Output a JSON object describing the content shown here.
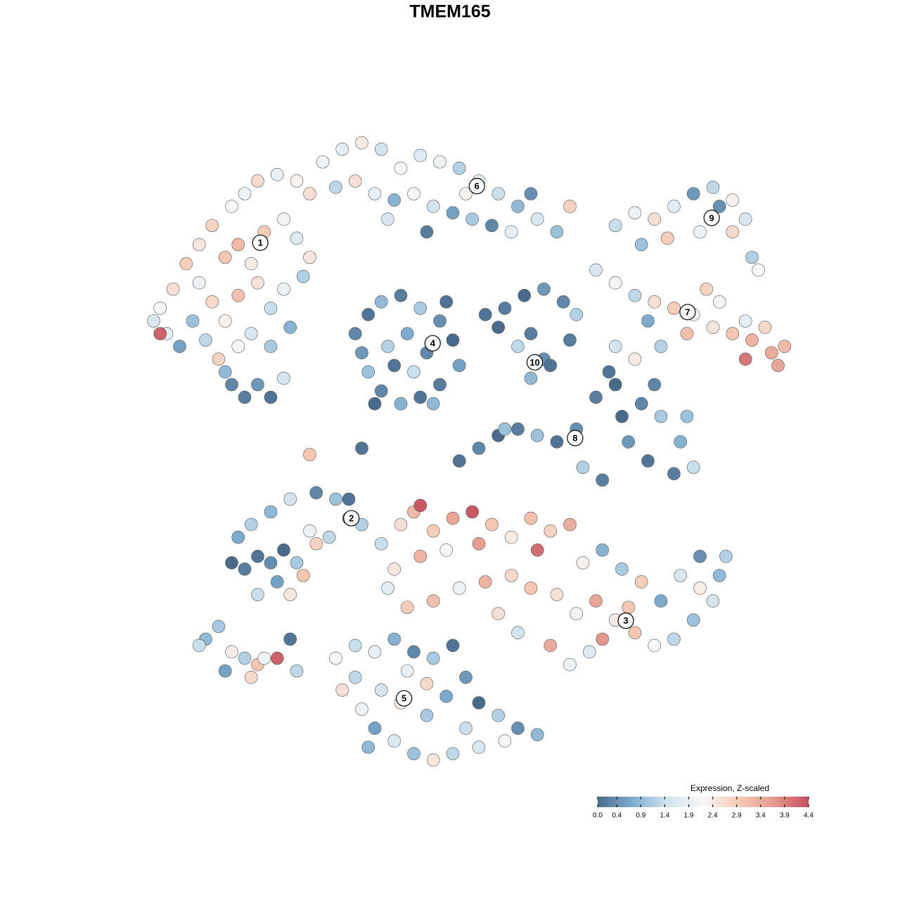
{
  "chart_data": {
    "type": "scatter",
    "title": "TMEM165",
    "xlim": [
      0,
      100
    ],
    "ylim": [
      0,
      100
    ],
    "x": [
      3,
      5,
      2,
      4,
      7,
      9,
      11,
      14,
      16,
      18,
      21,
      24,
      26,
      13,
      15,
      17,
      19,
      22,
      24,
      26,
      9,
      11,
      13,
      15,
      18,
      20,
      22,
      25,
      8,
      10,
      12,
      15,
      17,
      20,
      23,
      3,
      14,
      16,
      18,
      20,
      13,
      22,
      6,
      28,
      31,
      34,
      37,
      40,
      43,
      46,
      49,
      52,
      55,
      58,
      61,
      64,
      66,
      30,
      33,
      36,
      39,
      42,
      45,
      48,
      51,
      54,
      57,
      60,
      50,
      44,
      38,
      73,
      76,
      79,
      82,
      85,
      88,
      91,
      93,
      94,
      91,
      86,
      81,
      77,
      95,
      89,
      70,
      73,
      76,
      79,
      82,
      85,
      88,
      91,
      94,
      97,
      99,
      96,
      93,
      89,
      84,
      80,
      76,
      73,
      78,
      93,
      98,
      87,
      33,
      35,
      37,
      40,
      43,
      46,
      48,
      49,
      46,
      43,
      40,
      37,
      35,
      34,
      38,
      41,
      44,
      42,
      39,
      36,
      45,
      47,
      53,
      56,
      59,
      62,
      65,
      67,
      60,
      62,
      60,
      63,
      58,
      55,
      66,
      49,
      52,
      55,
      58,
      61,
      64,
      67,
      70,
      73,
      77,
      80,
      83,
      85,
      82,
      78,
      75,
      71,
      68,
      74,
      84,
      79,
      72,
      14,
      16,
      18,
      20,
      22,
      24,
      21,
      18,
      23,
      25,
      17,
      20,
      23,
      27,
      30,
      32,
      29,
      26,
      15,
      27,
      32,
      34,
      40,
      42,
      45,
      48,
      51,
      54,
      57,
      60,
      63,
      66,
      61,
      52,
      47,
      43,
      39,
      38,
      41,
      45,
      49,
      53,
      57,
      60,
      64,
      67,
      70,
      73,
      76,
      79,
      82,
      85,
      88,
      89,
      86,
      83,
      80,
      77,
      74,
      71,
      68,
      63,
      66,
      69,
      86,
      90,
      75,
      43,
      37,
      55,
      58,
      71,
      30,
      33,
      36,
      39,
      42,
      45,
      48,
      50,
      52,
      55,
      58,
      61,
      56,
      52,
      48,
      45,
      42,
      39,
      36,
      34,
      31,
      33,
      37,
      40,
      44,
      47,
      41,
      35,
      44,
      50,
      10,
      12,
      9,
      14,
      16,
      18,
      19,
      21,
      17,
      23,
      13,
      24,
      26,
      34,
      56
    ],
    "values": [
      72,
      75,
      70,
      68,
      79,
      82,
      85,
      88,
      90,
      92,
      93,
      92,
      90,
      80,
      82,
      79,
      84,
      86,
      83,
      80,
      76,
      73,
      70,
      74,
      76,
      72,
      75,
      77,
      70,
      67,
      64,
      66,
      68,
      66,
      69,
      68,
      60,
      58,
      60,
      58,
      62,
      61,
      66,
      95,
      97,
      98,
      97,
      94,
      96,
      95,
      94,
      92,
      90,
      88,
      86,
      84,
      88,
      91,
      92,
      90,
      89,
      90,
      88,
      87,
      86,
      85,
      84,
      90,
      90,
      84,
      86,
      85,
      87,
      86,
      88,
      90,
      91,
      89,
      86,
      80,
      84,
      84,
      83,
      82,
      78,
      88,
      78,
      76,
      74,
      73,
      72,
      71,
      69,
      68,
      67,
      65,
      66,
      69,
      70,
      73,
      68,
      66,
      64,
      66,
      70,
      64,
      63,
      75,
      68,
      71,
      73,
      74,
      72,
      70,
      67,
      63,
      60,
      58,
      57,
      59,
      62,
      65,
      66,
      68,
      65,
      62,
      63,
      57,
      57,
      73,
      71,
      72,
      74,
      75,
      73,
      71,
      68,
      64,
      61,
      63,
      66,
      69,
      67,
      48,
      50,
      52,
      53,
      52,
      51,
      53,
      58,
      60,
      57,
      55,
      51,
      47,
      46,
      48,
      51,
      45,
      47,
      55,
      55,
      60,
      62,
      32,
      31,
      33,
      32,
      34,
      32,
      29,
      27,
      27,
      30,
      38,
      40,
      42,
      43,
      42,
      39,
      36,
      37,
      36,
      35,
      42,
      38,
      38,
      40,
      37,
      39,
      40,
      38,
      36,
      39,
      37,
      38,
      34,
      35,
      34,
      33,
      31,
      28,
      25,
      26,
      28,
      29,
      30,
      28,
      27,
      24,
      26,
      23,
      21,
      19,
      20,
      23,
      26,
      30,
      33,
      30,
      26,
      29,
      31,
      34,
      32,
      19,
      16,
      18,
      28,
      33,
      25,
      41,
      35,
      24,
      21,
      20,
      17,
      19,
      18,
      20,
      18,
      17,
      19,
      14,
      10,
      8,
      6,
      5,
      4,
      3,
      2,
      1,
      2,
      4,
      6,
      9,
      12,
      14,
      12,
      10,
      8,
      11,
      15,
      3,
      13,
      6,
      20,
      22,
      19,
      18,
      17,
      16,
      17,
      17,
      14,
      20,
      15,
      15,
      49,
      50,
      53
    ],
    "expression": [
      2.2,
      2.6,
      1.6,
      1.8,
      2.9,
      2.5,
      2.8,
      2.2,
      2.0,
      2.7,
      1.9,
      2.3,
      2.6,
      3.0,
      3.2,
      2.4,
      2.9,
      2.1,
      1.7,
      2.5,
      2.0,
      2.7,
      2.3,
      3.1,
      2.6,
      1.4,
      2.0,
      1.2,
      1.0,
      1.3,
      2.8,
      2.2,
      1.6,
      1.1,
      0.8,
      4.2,
      0.3,
      0.2,
      0.5,
      0.1,
      0.9,
      1.5,
      0.6,
      2.0,
      1.8,
      2.4,
      1.5,
      2.2,
      1.7,
      2.0,
      1.2,
      1.8,
      1.4,
      0.9,
      1.6,
      1.0,
      2.8,
      1.3,
      2.6,
      1.9,
      0.8,
      2.1,
      1.5,
      0.6,
      1.1,
      0.3,
      1.9,
      0.4,
      2.3,
      0.2,
      1.6,
      1.4,
      2.0,
      2.6,
      1.8,
      0.5,
      1.3,
      2.3,
      1.6,
      1.2,
      2.7,
      2.0,
      2.9,
      1.0,
      2.2,
      0.4,
      1.6,
      2.1,
      1.3,
      2.6,
      2.9,
      2.2,
      2.5,
      3.0,
      3.3,
      3.4,
      3.2,
      2.7,
      1.8,
      2.1,
      3.1,
      1.2,
      2.4,
      1.5,
      0.7,
      4.0,
      3.5,
      2.8,
      0.3,
      0.1,
      0.9,
      0.2,
      1.1,
      0.4,
      0.0,
      0.6,
      0.2,
      0.1,
      0.8,
      0.3,
      1.0,
      0.5,
      1.2,
      0.7,
      0.3,
      1.4,
      0.1,
      0.0,
      0.9,
      0.1,
      0.1,
      0.2,
      0.0,
      0.5,
      0.3,
      1.2,
      0.2,
      0.4,
      0.9,
      0.1,
      1.3,
      0.0,
      0.2,
      0.1,
      0.3,
      0.0,
      0.2,
      1.0,
      0.1,
      0.4,
      0.2,
      0.0,
      0.3,
      1.1,
      0.8,
      1.4,
      0.2,
      0.1,
      0.5,
      0.2,
      1.2,
      0.0,
      1.0,
      0.3,
      0.1,
      0.0,
      0.2,
      0.1,
      0.4,
      0.0,
      1.1,
      0.6,
      1.4,
      2.5,
      3.0,
      1.2,
      0.9,
      1.5,
      0.3,
      1.0,
      0.5,
      1.3,
      2.0,
      0.7,
      2.8,
      0.1,
      1.2,
      2.6,
      3.2,
      2.9,
      3.5,
      4.3,
      3.0,
      2.4,
      3.1,
      2.8,
      3.4,
      4.1,
      3.6,
      2.2,
      3.3,
      2.5,
      1.8,
      2.9,
      3.1,
      2.0,
      3.3,
      2.7,
      3.0,
      2.6,
      2.1,
      3.5,
      2.4,
      3.0,
      2.2,
      1.3,
      1.0,
      1.5,
      0.9,
      0.4,
      1.6,
      0.7,
      2.9,
      1.1,
      0.8,
      2.3,
      3.4,
      2.0,
      1.7,
      2.4,
      1.2,
      3.0,
      4.3,
      1.4,
      2.6,
      1.5,
      3.7,
      2.2,
      1.4,
      1.9,
      0.8,
      0.3,
      1.1,
      0.1,
      0.5,
      0.0,
      1.2,
      0.4,
      0.9,
      2.1,
      1.6,
      1.3,
      2.5,
      1.0,
      1.7,
      0.6,
      2.0,
      2.6,
      1.3,
      1.5,
      2.4,
      1.1,
      0.7,
      1.9,
      0.9,
      2.7,
      1.4,
      0.9,
      1.1,
      1.4,
      2.4,
      1.2,
      3.0,
      2.0,
      4.2,
      2.7,
      0.1,
      0.6,
      1.3,
      3.0,
      0.1,
      1.0
    ],
    "clusters": [
      {
        "label": "1",
        "x": 18.4,
        "y": 82.3
      },
      {
        "label": "2",
        "x": 32.4,
        "y": 39.0
      },
      {
        "label": "3",
        "x": 74.6,
        "y": 22.9
      },
      {
        "label": "4",
        "x": 44.9,
        "y": 66.5
      },
      {
        "label": "5",
        "x": 40.5,
        "y": 10.7
      },
      {
        "label": "6",
        "x": 51.7,
        "y": 91.2
      },
      {
        "label": "7",
        "x": 84.1,
        "y": 71.4
      },
      {
        "label": "8",
        "x": 66.8,
        "y": 51.6
      },
      {
        "label": "9",
        "x": 87.8,
        "y": 86.2
      },
      {
        "label": "10",
        "x": 60.6,
        "y": 63.5
      }
    ],
    "colorbar": {
      "title": "Expression, Z-scaled",
      "lim": [
        0,
        4.4
      ],
      "colors": [
        "#4a6a8c",
        "#7faed0",
        "#d2e4ef",
        "#f7f7f7",
        "#f5cbb6",
        "#e69a8f",
        "#c44e5c"
      ],
      "ticks": [
        {
          "value": 0,
          "label": "0.0"
        },
        0.4,
        0.9,
        1.4,
        1.9,
        2.4,
        2.9,
        3.4,
        3.9,
        4.4
      ]
    }
  }
}
